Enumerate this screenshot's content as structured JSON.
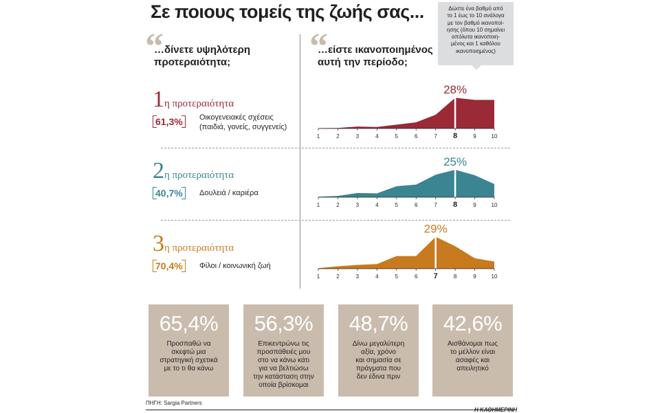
{
  "header": {
    "title": "Σε ποιους τομείς της ζωής σας...",
    "left_question": [
      "…δίνετε υψηλότερη",
      "προτεραιότητα;"
    ],
    "right_question": [
      "…είστε ικανοποιημένος",
      "αυτή την περίοδο;"
    ],
    "quote_mark": "“",
    "info_lines": [
      "Δώστε ένα βαθμό από",
      "το 1 έως το 10 ανάλογα",
      "με τον βαθμό ικανοποί-",
      "ησης (όπου 10 σημαίνει",
      "απόλυτα ικανοποιη-",
      "μένος και 1 καθόλου",
      "ικανοποιημένος)"
    ]
  },
  "colors": {
    "red": "#9a2a36",
    "teal": "#3b8592",
    "orange": "#c77a1e",
    "box": "#cabcad"
  },
  "chart_data": [
    {
      "type": "area",
      "priority_number": "1",
      "priority_label": "η προτεραιότητα",
      "share": "61,3%",
      "category": [
        "Οικογενειακές σχέσεις",
        "(παιδιά, γονείς, συγγενείς)"
      ],
      "x": [
        1,
        2,
        3,
        4,
        5,
        6,
        7,
        8,
        9,
        10
      ],
      "values": [
        0.3,
        0.5,
        1.8,
        1.4,
        3.5,
        5.6,
        12.5,
        28,
        26,
        26
      ],
      "peak_x": 8,
      "peak_label": "28%",
      "ylim": [
        0,
        30
      ],
      "color": "#9a2a36"
    },
    {
      "type": "area",
      "priority_number": "2",
      "priority_label": "η προτεραιότητα",
      "share": "40,7%",
      "category": [
        "Δουλειά / καριέρα"
      ],
      "x": [
        1,
        2,
        3,
        4,
        5,
        6,
        7,
        8,
        9,
        10
      ],
      "values": [
        0.5,
        1.2,
        3.8,
        3.5,
        10,
        11.5,
        20.5,
        25,
        20,
        12
      ],
      "peak_x": 8,
      "peak_label": "25%",
      "ylim": [
        0,
        30
      ],
      "color": "#3b8592"
    },
    {
      "type": "area",
      "priority_number": "3",
      "priority_label": "η προτεραιότητα",
      "share": "70,4%",
      "category": [
        "Φίλοι / κοινωνική ζωή"
      ],
      "x": [
        1,
        2,
        3,
        4,
        5,
        6,
        7,
        8,
        9,
        10
      ],
      "values": [
        0.5,
        2.2,
        3.4,
        4.2,
        11.5,
        11.5,
        29,
        20.5,
        9.5,
        6.5
      ],
      "peak_x": 7,
      "peak_label": "29%",
      "ylim": [
        0,
        30
      ],
      "color": "#c77a1e"
    }
  ],
  "boxes": [
    {
      "value": "65,4%",
      "lines": [
        "Προσπαθώ να",
        "σκεφτώ μια",
        "στρατηγική σχετικά",
        "με το τι θα κάνω"
      ]
    },
    {
      "value": "56,3%",
      "lines": [
        "Επικεντρώνω τις",
        "προσπάθειές μου",
        "στο να κάνω κάτι",
        "για να βελτιώσω",
        "την κατάσταση στην",
        "οποία βρίσκομαι"
      ]
    },
    {
      "value": "48,7%",
      "lines": [
        "Δίνω μεγαλύτερη",
        "αξία, χρόνο",
        "και σημασία σε",
        "πράγματα που",
        "δεν έδινα πριν"
      ]
    },
    {
      "value": "42,6%",
      "lines": [
        "Αισθάνομαι πως",
        "το μέλλον είναι",
        "ασαφές και",
        "απειλητικό"
      ]
    }
  ],
  "footer": {
    "source": "ΠΗΓΗ: Sargia Partners",
    "brand": "Η ΚΑΘΗΜΕΡΙΝΗ"
  }
}
